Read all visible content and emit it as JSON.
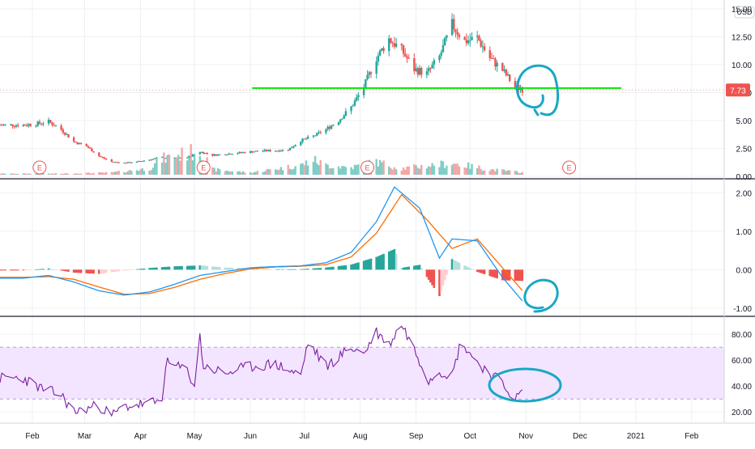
{
  "currency_label": "USD",
  "last_price_label": "7.73",
  "earnings_marker_label": "E",
  "colors": {
    "up": "#26a69a",
    "down": "#ef5350",
    "vol_up": "#7fcdc5",
    "vol_down": "#f4a6a6",
    "macd_line": "#2196f3",
    "signal_line": "#ff6d00",
    "hist_pos_strong": "#26a69a",
    "hist_pos_weak": "#b2dfdb",
    "hist_neg_strong": "#ef5350",
    "hist_neg_weak": "#ffcdd2",
    "rsi_line": "#7b1fa2",
    "rsi_band": "#f3e5ff",
    "support_line": "#00e600",
    "annotation": "#19a7c5",
    "grid": "#eef0f3",
    "price_label_bg": "#ef5350"
  },
  "x_axis": {
    "months": [
      "Feb",
      "Mar",
      "Apr",
      "May",
      "Jun",
      "Jul",
      "Aug",
      "Sep",
      "Oct",
      "Nov",
      "Dec",
      "2021",
      "Feb"
    ]
  },
  "chart_data": [
    {
      "type": "candlestick",
      "pane": "price",
      "y_ticks": [
        "15.00",
        "12.50",
        "10.00",
        "7.50",
        "5.00",
        "2.50",
        "0.00"
      ],
      "ylim": [
        0,
        15.5
      ],
      "last_price": 7.73,
      "support_level": 7.9,
      "earnings_markers": [
        "2020-02-05",
        "2020-05-06",
        "2020-08-05",
        "2020-11-25"
      ],
      "close_path": [
        [
          "2020-01-27",
          4.6
        ],
        [
          "2020-02-03",
          4.7
        ],
        [
          "2020-02-10",
          4.9
        ],
        [
          "2020-02-17",
          4.2
        ],
        [
          "2020-02-24",
          3.1
        ],
        [
          "2020-03-02",
          2.7
        ],
        [
          "2020-03-09",
          1.8
        ],
        [
          "2020-03-16",
          1.3
        ],
        [
          "2020-03-23",
          1.2
        ],
        [
          "2020-03-30",
          1.3
        ],
        [
          "2020-04-06",
          1.5
        ],
        [
          "2020-04-13",
          1.7
        ],
        [
          "2020-04-20",
          1.6
        ],
        [
          "2020-04-27",
          1.7
        ],
        [
          "2020-05-04",
          2.2
        ],
        [
          "2020-05-11",
          1.9
        ],
        [
          "2020-05-18",
          2.0
        ],
        [
          "2020-05-25",
          2.1
        ],
        [
          "2020-06-01",
          2.2
        ],
        [
          "2020-06-08",
          2.3
        ],
        [
          "2020-06-15",
          2.3
        ],
        [
          "2020-06-22",
          2.4
        ],
        [
          "2020-06-29",
          3.2
        ],
        [
          "2020-07-06",
          3.6
        ],
        [
          "2020-07-13",
          4.2
        ],
        [
          "2020-07-20",
          5.0
        ],
        [
          "2020-07-27",
          6.2
        ],
        [
          "2020-08-03",
          8.0
        ],
        [
          "2020-08-10",
          10.6
        ],
        [
          "2020-08-17",
          12.3
        ],
        [
          "2020-08-24",
          11.3
        ],
        [
          "2020-08-31",
          9.6
        ],
        [
          "2020-09-07",
          9.2
        ],
        [
          "2020-09-14",
          10.7
        ],
        [
          "2020-09-21",
          13.6
        ],
        [
          "2020-09-28",
          12.1
        ],
        [
          "2020-10-05",
          12.4
        ],
        [
          "2020-10-12",
          10.6
        ],
        [
          "2020-10-19",
          9.5
        ],
        [
          "2020-10-26",
          8.0
        ],
        [
          "2020-11-01",
          7.73
        ]
      ],
      "volume_path": [
        [
          "2020-01-27",
          0.1
        ],
        [
          "2020-02-17",
          0.1
        ],
        [
          "2020-03-16",
          0.2
        ],
        [
          "2020-04-06",
          0.6
        ],
        [
          "2020-04-13",
          1.5
        ],
        [
          "2020-05-04",
          2.3
        ],
        [
          "2020-05-11",
          0.5
        ],
        [
          "2020-06-01",
          0.2
        ],
        [
          "2020-06-29",
          0.9
        ],
        [
          "2020-07-06",
          1.4
        ],
        [
          "2020-07-13",
          0.9
        ],
        [
          "2020-07-27",
          0.7
        ],
        [
          "2020-08-10",
          1.2
        ],
        [
          "2020-08-24",
          0.6
        ],
        [
          "2020-09-21",
          1.1
        ],
        [
          "2020-10-12",
          0.5
        ],
        [
          "2020-11-01",
          0.2
        ]
      ]
    },
    {
      "type": "macd",
      "pane": "macd",
      "y_ticks": [
        "2.00",
        "1.00",
        "0.00",
        "-1.00"
      ],
      "ylim": [
        -1.15,
        2.3
      ],
      "macd": [
        [
          "2020-01-27",
          -0.22
        ],
        [
          "2020-02-10",
          -0.15
        ],
        [
          "2020-02-24",
          -0.32
        ],
        [
          "2020-03-09",
          -0.55
        ],
        [
          "2020-03-23",
          -0.66
        ],
        [
          "2020-04-06",
          -0.58
        ],
        [
          "2020-04-20",
          -0.38
        ],
        [
          "2020-05-04",
          -0.15
        ],
        [
          "2020-05-18",
          -0.05
        ],
        [
          "2020-06-01",
          0.05
        ],
        [
          "2020-06-15",
          0.08
        ],
        [
          "2020-06-29",
          0.1
        ],
        [
          "2020-07-13",
          0.18
        ],
        [
          "2020-07-27",
          0.45
        ],
        [
          "2020-08-10",
          1.25
        ],
        [
          "2020-08-20",
          2.15
        ],
        [
          "2020-09-03",
          1.6
        ],
        [
          "2020-09-14",
          0.3
        ],
        [
          "2020-09-21",
          0.8
        ],
        [
          "2020-10-05",
          0.75
        ],
        [
          "2020-10-19",
          -0.2
        ],
        [
          "2020-11-01",
          -0.92
        ]
      ],
      "signal": [
        [
          "2020-01-27",
          -0.2
        ],
        [
          "2020-02-10",
          -0.18
        ],
        [
          "2020-02-24",
          -0.25
        ],
        [
          "2020-03-09",
          -0.45
        ],
        [
          "2020-03-23",
          -0.64
        ],
        [
          "2020-04-06",
          -0.62
        ],
        [
          "2020-04-20",
          -0.46
        ],
        [
          "2020-05-04",
          -0.25
        ],
        [
          "2020-05-18",
          -0.1
        ],
        [
          "2020-06-01",
          0.02
        ],
        [
          "2020-06-15",
          0.07
        ],
        [
          "2020-06-29",
          0.09
        ],
        [
          "2020-07-13",
          0.13
        ],
        [
          "2020-07-27",
          0.33
        ],
        [
          "2020-08-10",
          0.95
        ],
        [
          "2020-08-24",
          1.95
        ],
        [
          "2020-09-07",
          1.3
        ],
        [
          "2020-09-21",
          0.55
        ],
        [
          "2020-10-05",
          0.8
        ],
        [
          "2020-10-19",
          0.05
        ],
        [
          "2020-11-01",
          -0.65
        ]
      ]
    },
    {
      "type": "line",
      "pane": "rsi",
      "y_ticks": [
        "80.00",
        "60.00",
        "40.00",
        "20.00"
      ],
      "ylim": [
        12,
        92
      ],
      "band": [
        30,
        70
      ],
      "rsi": [
        [
          "2020-01-27",
          46
        ],
        [
          "2020-02-06",
          38
        ],
        [
          "2020-02-17",
          33
        ],
        [
          "2020-02-24",
          20
        ],
        [
          "2020-03-09",
          25
        ],
        [
          "2020-03-16",
          17
        ],
        [
          "2020-03-23",
          24
        ],
        [
          "2020-04-06",
          27
        ],
        [
          "2020-04-13",
          28
        ],
        [
          "2020-04-15",
          58
        ],
        [
          "2020-04-27",
          52
        ],
        [
          "2020-05-01",
          40
        ],
        [
          "2020-05-04",
          78
        ],
        [
          "2020-05-06",
          55
        ],
        [
          "2020-05-18",
          50
        ],
        [
          "2020-06-01",
          55
        ],
        [
          "2020-06-15",
          57
        ],
        [
          "2020-06-29",
          48
        ],
        [
          "2020-07-03",
          74
        ],
        [
          "2020-07-13",
          55
        ],
        [
          "2020-07-27",
          70
        ],
        [
          "2020-08-03",
          65
        ],
        [
          "2020-08-10",
          82
        ],
        [
          "2020-08-17",
          72
        ],
        [
          "2020-08-24",
          88
        ],
        [
          "2020-09-03",
          60
        ],
        [
          "2020-09-08",
          45
        ],
        [
          "2020-09-14",
          52
        ],
        [
          "2020-09-21",
          48
        ],
        [
          "2020-09-26",
          75
        ],
        [
          "2020-10-05",
          58
        ],
        [
          "2020-10-12",
          50
        ],
        [
          "2020-10-19",
          42
        ],
        [
          "2020-10-26",
          30
        ],
        [
          "2020-11-01",
          38
        ]
      ]
    }
  ]
}
